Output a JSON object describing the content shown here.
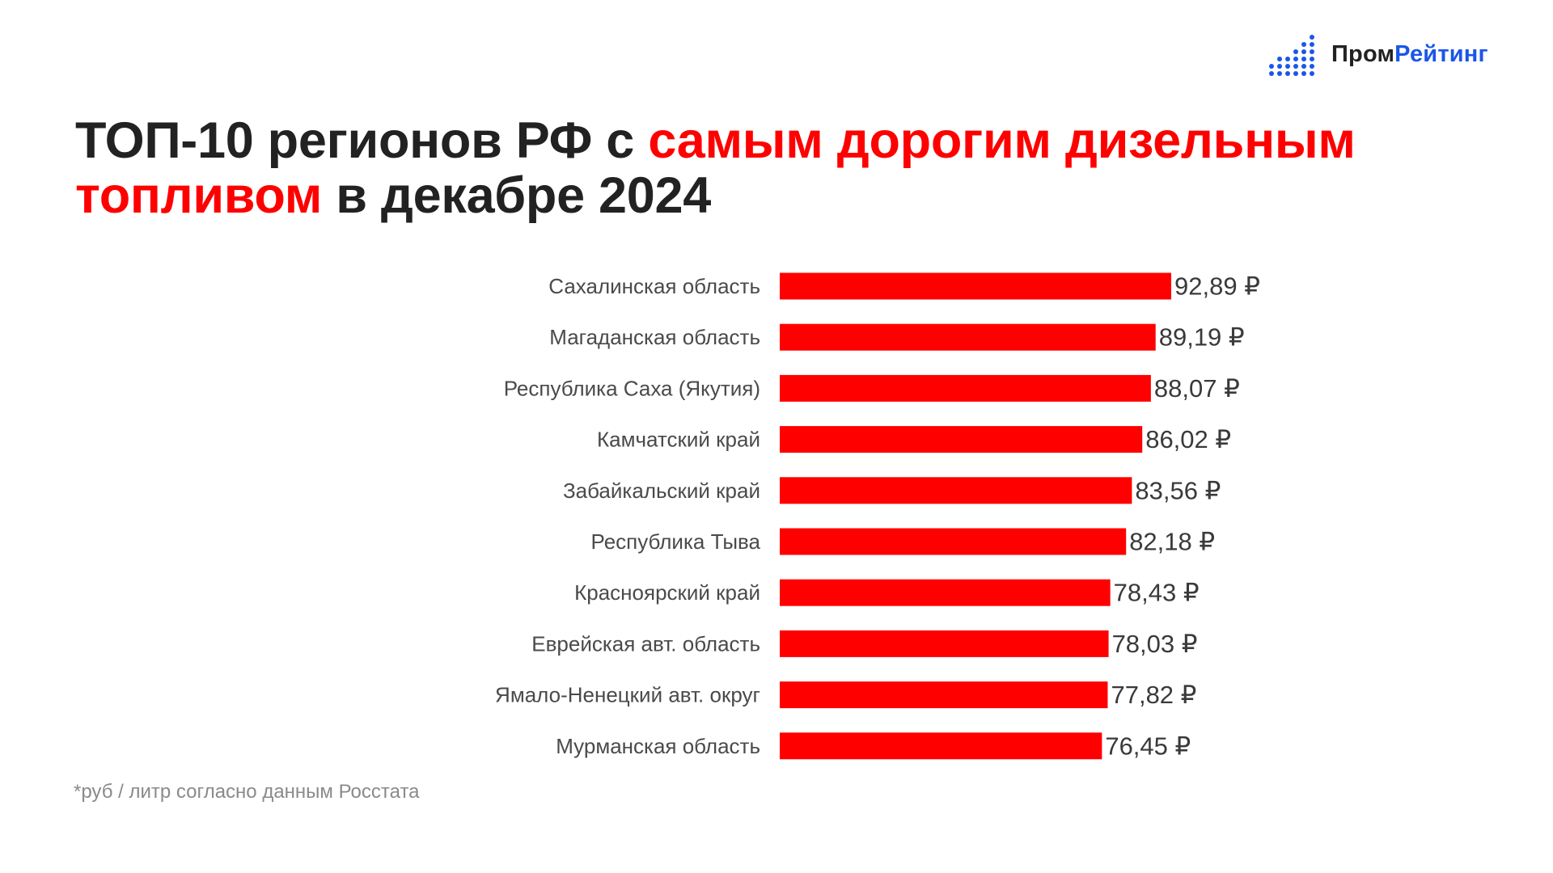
{
  "logo": {
    "icon": "bar-dots-logo-icon",
    "word_1": "Пром",
    "word_2": "Рейтинг"
  },
  "title": {
    "part_1": "ТОП-10 регионов РФ с ",
    "part_2_accent": "самым дорогим дизельным топливом",
    "part_3": " в декабре 2024"
  },
  "footnote": "*руб / литр согласно данным Росстата",
  "colors": {
    "bar": "#ff0000",
    "title_accent": "#ff0000",
    "logo_accent": "#1a56e8",
    "text_dark": "#222222"
  },
  "chart_data": {
    "type": "bar",
    "orientation": "horizontal",
    "categories": [
      "Сахалинская область",
      "Магаданская область",
      "Республика Саха (Якутия)",
      "Камчатский край",
      "Забайкальский край",
      "Республика Тыва",
      "Красноярский край",
      "Еврейская авт. область",
      "Ямало-Ненецкий авт. округ",
      "Мурманская область"
    ],
    "values": [
      92.89,
      89.19,
      88.07,
      86.02,
      83.56,
      82.18,
      78.43,
      78.03,
      77.82,
      76.45
    ],
    "value_labels": [
      "92,89 ₽",
      "89,19 ₽",
      "88,07 ₽",
      "86,02 ₽",
      "83,56 ₽",
      "82,18 ₽",
      "78,43 ₽",
      "78,03 ₽",
      "77,82 ₽",
      "76,45 ₽"
    ],
    "xlim": [
      0,
      92.89
    ],
    "grid": false,
    "legend": "none"
  }
}
